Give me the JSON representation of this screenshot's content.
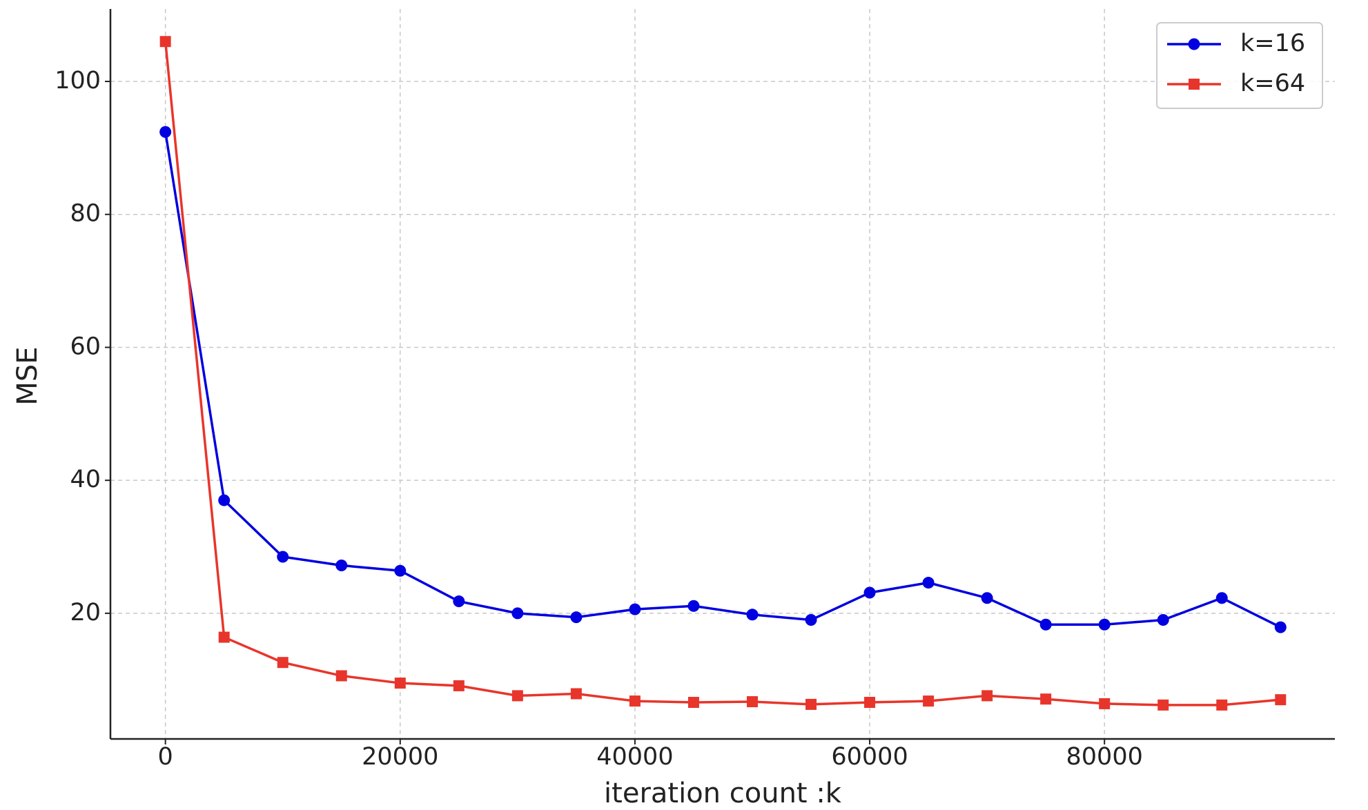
{
  "chart_data": {
    "type": "line",
    "xlabel": "iteration count :k",
    "ylabel": "MSE",
    "x": [
      0,
      5000,
      10000,
      15000,
      20000,
      25000,
      30000,
      35000,
      40000,
      45000,
      50000,
      55000,
      60000,
      65000,
      70000,
      75000,
      80000,
      85000,
      90000,
      95000
    ],
    "series": [
      {
        "name": "k=16",
        "color": "#0000e0",
        "marker": "circle",
        "values": [
          92.4,
          37,
          28.5,
          27.2,
          26.4,
          21.8,
          20,
          19.4,
          20.6,
          21.1,
          19.8,
          19,
          23.1,
          24.6,
          22.3,
          18.3,
          18.3,
          19,
          22.3,
          17.9
        ]
      },
      {
        "name": "k=64",
        "color": "#e8352b",
        "marker": "square",
        "values": [
          106,
          16.4,
          12.6,
          10.6,
          9.5,
          9.1,
          7.6,
          7.9,
          6.8,
          6.6,
          6.7,
          6.3,
          6.6,
          6.8,
          7.6,
          7.1,
          6.4,
          6.2,
          6.2,
          7.0
        ]
      }
    ],
    "xlim": [
      -4684,
      99628
    ],
    "ylim": [
      1.1,
      110.9
    ],
    "xticks": [
      0,
      20000,
      40000,
      60000,
      80000
    ],
    "yticks": [
      20,
      40,
      60,
      80,
      100
    ],
    "grid": true,
    "legend": "upper right"
  }
}
